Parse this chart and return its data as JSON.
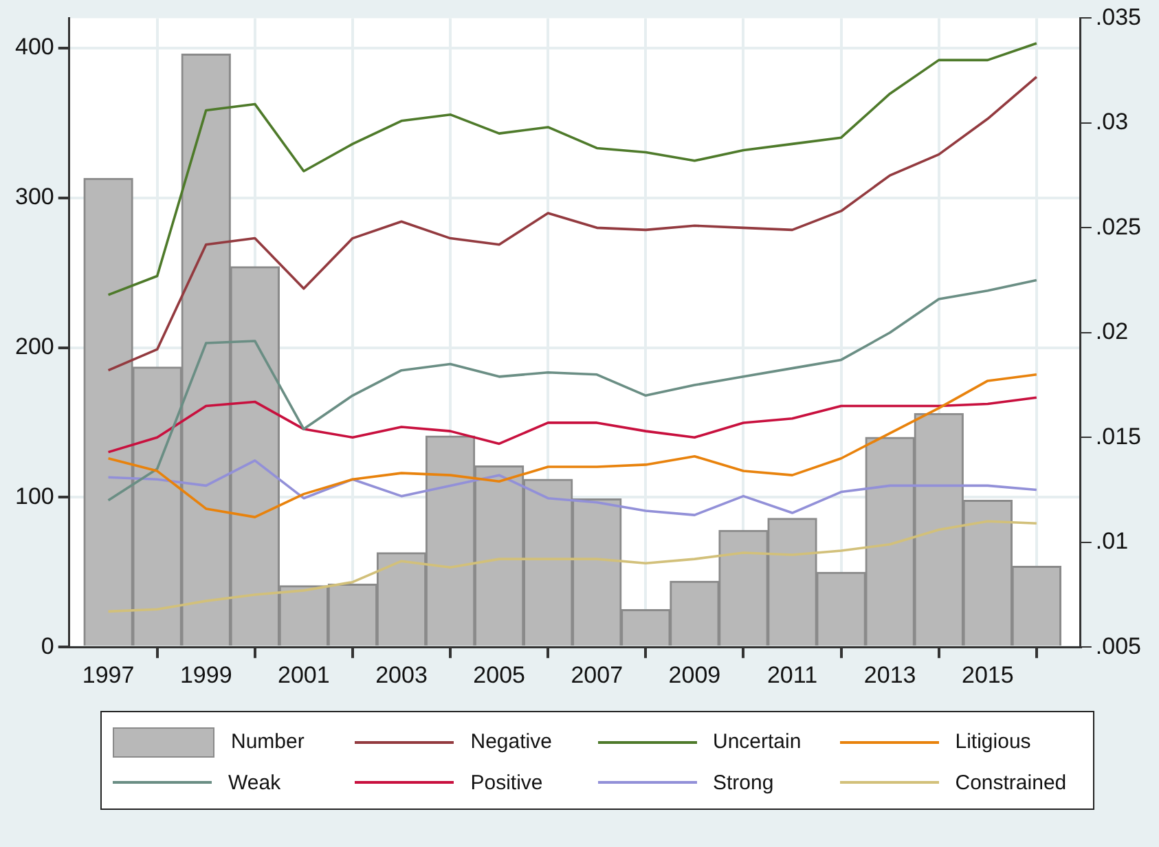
{
  "chart_data": {
    "type": "bar",
    "x": [
      1997,
      1998,
      1999,
      2000,
      2001,
      2002,
      2003,
      2004,
      2005,
      2006,
      2007,
      2008,
      2009,
      2010,
      2011,
      2012,
      2013,
      2014,
      2015,
      2016
    ],
    "xlim": [
      1996.2,
      2016.9
    ],
    "xticks": [
      1997,
      1999,
      2001,
      2003,
      2005,
      2007,
      2009,
      2011,
      2013,
      2015
    ],
    "ylim": [
      0,
      420
    ],
    "yticks": [
      0,
      100,
      200,
      300,
      400
    ],
    "y2lim": [
      0.005,
      0.035
    ],
    "y2ticks": [
      {
        "value": 0.005,
        "label": ".005"
      },
      {
        "value": 0.01,
        "label": ".01"
      },
      {
        "value": 0.015,
        "label": ".015"
      },
      {
        "value": 0.02,
        "label": ".02"
      },
      {
        "value": 0.025,
        "label": ".025"
      },
      {
        "value": 0.03,
        "label": ".03"
      },
      {
        "value": 0.035,
        "label": ".035"
      }
    ],
    "grid": true,
    "legend": "bottom",
    "series": [
      {
        "name": "Number",
        "color": "#b8b8b8",
        "values": [
          313,
          187,
          396,
          254,
          41,
          42,
          63,
          141,
          121,
          112,
          99,
          25,
          44,
          78,
          86,
          50,
          140,
          156,
          98,
          54
        ]
      },
      {
        "name": "Negative",
        "type": "line",
        "axis": "y2",
        "color": "#933a3f",
        "values": [
          0.0182,
          0.0192,
          0.0242,
          0.0245,
          0.0221,
          0.0245,
          0.0253,
          0.0245,
          0.0242,
          0.0257,
          0.025,
          0.0249,
          0.0251,
          0.025,
          0.0249,
          0.0258,
          0.0275,
          0.0285,
          0.0302,
          0.0322
        ]
      },
      {
        "name": "Uncertain",
        "type": "line",
        "axis": "y2",
        "color": "#4e7a2a",
        "values": [
          0.0218,
          0.0227,
          0.0306,
          0.0309,
          0.0277,
          0.029,
          0.0301,
          0.0304,
          0.0295,
          0.0298,
          0.0288,
          0.0286,
          0.0282,
          0.0287,
          0.029,
          0.0293,
          0.0314,
          0.033,
          0.033,
          0.0338
        ]
      },
      {
        "name": "Litigious",
        "type": "line",
        "axis": "y2",
        "color": "#e8820c",
        "values": [
          0.014,
          0.0134,
          0.0116,
          0.0112,
          0.0123,
          0.013,
          0.0133,
          0.0132,
          0.0129,
          0.0136,
          0.0136,
          0.0137,
          0.0141,
          0.0134,
          0.0132,
          0.014,
          0.0152,
          0.0164,
          0.0177,
          0.018
        ]
      },
      {
        "name": "Weak",
        "type": "line",
        "axis": "y2",
        "color": "#6a8e84",
        "values": [
          0.012,
          0.0135,
          0.0195,
          0.0196,
          0.0154,
          0.017,
          0.0182,
          0.0185,
          0.0179,
          0.0181,
          0.018,
          0.017,
          0.0175,
          0.0179,
          0.0183,
          0.0187,
          0.02,
          0.0216,
          0.022,
          0.0225
        ]
      },
      {
        "name": "Positive",
        "type": "line",
        "axis": "y2",
        "color": "#c8103e",
        "values": [
          0.0143,
          0.015,
          0.0165,
          0.0167,
          0.0154,
          0.015,
          0.0155,
          0.0153,
          0.0147,
          0.0157,
          0.0157,
          0.0153,
          0.015,
          0.0157,
          0.0159,
          0.0165,
          0.0165,
          0.0165,
          0.0166,
          0.0169
        ]
      },
      {
        "name": "Strong",
        "type": "line",
        "axis": "y2",
        "color": "#9290d8",
        "values": [
          0.0131,
          0.013,
          0.0127,
          0.0139,
          0.0121,
          0.013,
          0.0122,
          0.0127,
          0.0132,
          0.0121,
          0.0119,
          0.0115,
          0.0113,
          0.0122,
          0.0114,
          0.0124,
          0.0127,
          0.0127,
          0.0127,
          0.0125
        ]
      },
      {
        "name": "Constrained",
        "type": "line",
        "axis": "y2",
        "color": "#d2c07a",
        "values": [
          0.0067,
          0.0068,
          0.0072,
          0.0075,
          0.0077,
          0.0081,
          0.0091,
          0.0088,
          0.0092,
          0.0092,
          0.0092,
          0.009,
          0.0092,
          0.0095,
          0.0094,
          0.0096,
          0.0099,
          0.0106,
          0.011,
          0.0109
        ]
      }
    ]
  }
}
